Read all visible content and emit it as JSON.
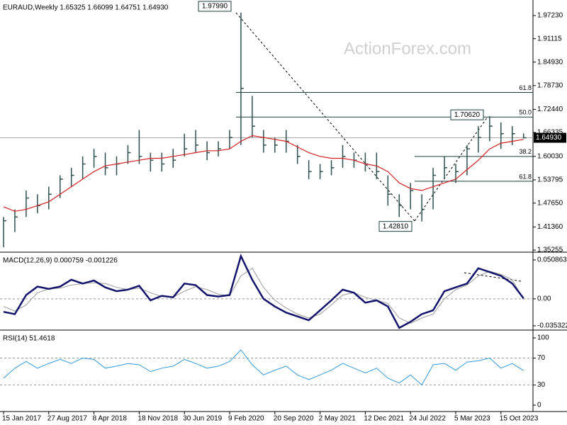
{
  "chart_data": [
    {
      "type": "ohlc",
      "title": "EURAUD,Weekly  1.65325 1.66099 1.64751 1.64930",
      "watermark": "ActionForex.com",
      "categories": [
        "15 Jan 2017",
        null,
        null,
        null,
        "27 Aug 2017",
        null,
        null,
        null,
        "8 Apr 2018",
        null,
        null,
        null,
        "18 Nov 2018",
        null,
        null,
        null,
        "30 Jun 2019",
        null,
        null,
        null,
        "9 Feb 2020",
        null,
        null,
        null,
        "20 Sep 2020",
        null,
        null,
        null,
        "2 May 2021",
        null,
        null,
        null,
        "12 Dec 2021",
        null,
        null,
        null,
        "24 Jul 2022",
        null,
        null,
        null,
        "5 Mar 2023",
        null,
        null,
        null,
        "15 Oct 2023",
        null,
        null
      ],
      "high": [
        1.44,
        1.46,
        1.51,
        1.5,
        1.52,
        1.55,
        1.57,
        1.6,
        1.62,
        1.61,
        1.6,
        1.63,
        1.67,
        1.61,
        1.61,
        1.62,
        1.66,
        1.67,
        1.64,
        1.64,
        1.67,
        1.9799,
        1.76,
        1.67,
        1.65,
        1.67,
        1.63,
        1.59,
        1.58,
        1.59,
        1.63,
        1.61,
        1.61,
        1.61,
        1.55,
        1.5,
        1.53,
        1.5,
        1.57,
        1.6,
        1.58,
        1.63,
        1.68,
        1.7062,
        1.69,
        1.68,
        1.66099
      ],
      "low": [
        1.36,
        1.4,
        1.44,
        1.45,
        1.46,
        1.49,
        1.52,
        1.54,
        1.57,
        1.55,
        1.55,
        1.58,
        1.58,
        1.56,
        1.56,
        1.57,
        1.6,
        1.61,
        1.59,
        1.6,
        1.62,
        1.63,
        1.65,
        1.61,
        1.61,
        1.61,
        1.58,
        1.54,
        1.54,
        1.55,
        1.57,
        1.57,
        1.56,
        1.54,
        1.47,
        1.44,
        1.46,
        1.4281,
        1.46,
        1.54,
        1.53,
        1.55,
        1.61,
        1.64,
        1.62,
        1.63,
        1.64751
      ],
      "close": [
        1.43,
        1.44,
        1.49,
        1.47,
        1.5,
        1.54,
        1.55,
        1.58,
        1.6,
        1.57,
        1.58,
        1.61,
        1.6,
        1.59,
        1.58,
        1.59,
        1.62,
        1.63,
        1.61,
        1.62,
        1.65,
        1.78,
        1.68,
        1.63,
        1.63,
        1.64,
        1.6,
        1.56,
        1.56,
        1.57,
        1.6,
        1.59,
        1.58,
        1.56,
        1.5,
        1.47,
        1.51,
        1.46,
        1.55,
        1.57,
        1.56,
        1.62,
        1.65,
        1.68,
        1.66,
        1.66,
        1.6493
      ],
      "color": "#2f4f4f",
      "ma": {
        "color": "#d42020",
        "values": [
          1.467,
          1.455,
          1.46,
          1.47,
          1.48,
          1.5,
          1.52,
          1.54,
          1.56,
          1.575,
          1.58,
          1.585,
          1.59,
          1.595,
          1.595,
          1.6,
          1.605,
          1.61,
          1.615,
          1.615,
          1.62,
          1.64,
          1.655,
          1.65,
          1.645,
          1.64,
          1.625,
          1.61,
          1.6,
          1.595,
          1.595,
          1.59,
          1.58,
          1.575,
          1.56,
          1.53,
          1.515,
          1.51,
          1.52,
          1.53,
          1.54,
          1.565,
          1.59,
          1.62,
          1.635,
          1.64,
          1.645
        ]
      },
      "annotations": [
        {
          "value": 1.9799,
          "label": "1.97990"
        },
        {
          "value": 1.4281,
          "label": "1.42810"
        },
        {
          "value": 1.7062,
          "label": "1.70620"
        }
      ],
      "fib_levels": [
        {
          "ratio": "61.8",
          "price": 1.7691
        },
        {
          "ratio": "50.0",
          "price": 1.704
        },
        {
          "ratio": "38.2",
          "price": 1.6
        },
        {
          "ratio": "61.8",
          "price": 1.5343
        }
      ],
      "last_price": {
        "value": 1.6493,
        "label": "1.64930"
      },
      "ylim": [
        1.3488,
        2.0041
      ],
      "yticks": [
        {
          "value": 1.9723,
          "label": "1.97230"
        },
        1.91115,
        {
          "value": 1.8493,
          "label": "1.84930"
        },
        {
          "value": 1.7873,
          "label": "1.78730"
        },
        {
          "value": 1.7244,
          "label": "1.72440"
        },
        1.66335,
        {
          "value": 1.6003,
          "label": "1.60030"
        },
        1.53795,
        {
          "value": 1.4765,
          "label": "1.47650"
        },
        {
          "value": 1.4136,
          "label": "1.41360"
        },
        1.35255
      ]
    },
    {
      "type": "line",
      "title": "MACD(12,26,9) 0.000759 -0.001226",
      "series": [
        {
          "color": "#14146e",
          "values": [
            -0.017,
            -0.02,
            0.005,
            0.016,
            0.013,
            0.016,
            0.025,
            0.02,
            0.024,
            0.015,
            0.01,
            0.012,
            0.017,
            -0.002,
            0.004,
            0.002,
            0.02,
            0.018,
            0.005,
            0.003,
            0.005,
            0.056,
            0.025,
            0.0,
            -0.01,
            -0.018,
            -0.023,
            -0.028,
            -0.015,
            -0.002,
            0.012,
            0.008,
            -0.005,
            -0.002,
            -0.01,
            -0.038,
            -0.03,
            -0.02,
            -0.015,
            0.01,
            0.015,
            0.02,
            0.04,
            0.035,
            0.03,
            0.02,
            0.000759
          ]
        },
        {
          "color": "#9a9a9a",
          "values": [
            -0.01,
            -0.016,
            -0.008,
            0.008,
            0.013,
            0.014,
            0.018,
            0.02,
            0.021,
            0.02,
            0.015,
            0.012,
            0.014,
            0.008,
            0.003,
            0.002,
            0.01,
            0.016,
            0.012,
            0.006,
            0.004,
            0.03,
            0.04,
            0.015,
            -0.002,
            -0.012,
            -0.02,
            -0.025,
            -0.02,
            -0.008,
            0.005,
            0.008,
            0.002,
            -0.002,
            -0.006,
            -0.025,
            -0.032,
            -0.025,
            -0.02,
            0.0,
            0.012,
            0.018,
            0.03,
            0.036,
            0.032,
            0.025,
            -0.001226
          ]
        }
      ],
      "ylim": [
        -0.039955,
        0.059203
      ],
      "yticks": [
        0.050863,
        {
          "value": 0,
          "label": "0.00"
        },
        -0.035322
      ]
    },
    {
      "type": "line",
      "title": "RSI(14) 51.4618",
      "series": [
        {
          "color": "#3399dd",
          "values": [
            40,
            55,
            65,
            55,
            62,
            68,
            62,
            70,
            68,
            55,
            58,
            62,
            60,
            50,
            55,
            58,
            68,
            62,
            55,
            58,
            65,
            82,
            60,
            45,
            52,
            58,
            45,
            38,
            45,
            52,
            62,
            55,
            48,
            55,
            40,
            33,
            45,
            30,
            60,
            62,
            52,
            64,
            66,
            70,
            55,
            62,
            51.4618
          ]
        }
      ],
      "levels": [
        70,
        30
      ],
      "ylim": [
        -8.4,
        109.5
      ],
      "yticks": [
        100,
        70,
        30,
        0
      ]
    }
  ]
}
